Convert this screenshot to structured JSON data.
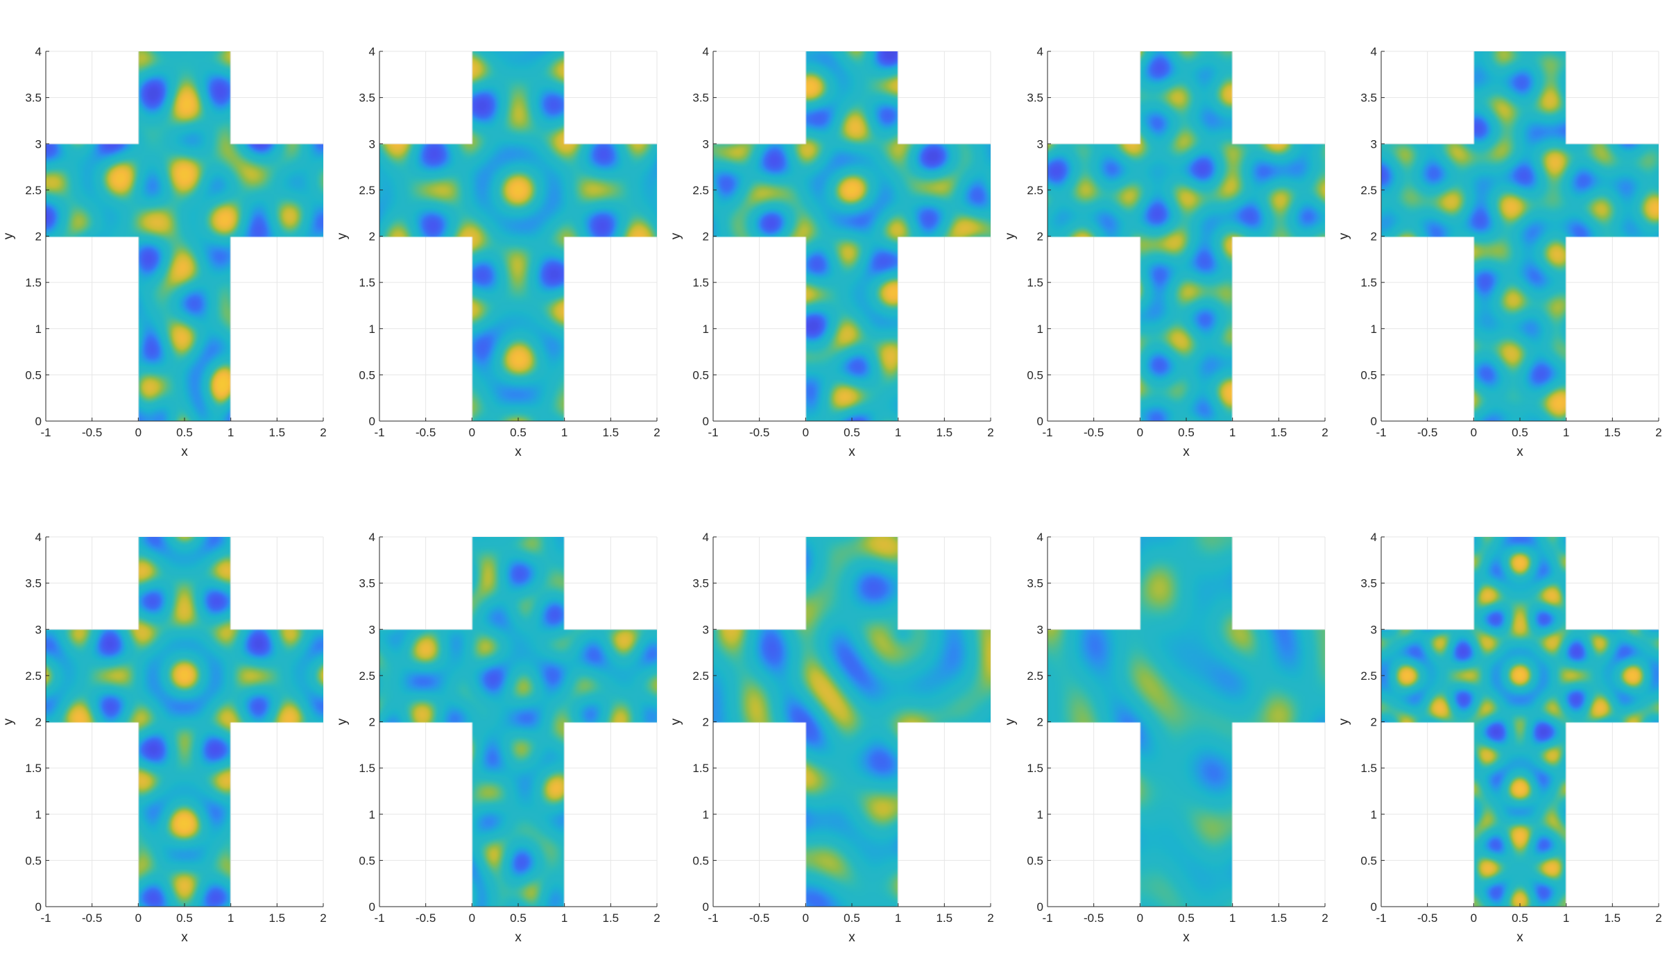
{
  "figure": {
    "colormap": [
      "#3e26a8",
      "#4754f0",
      "#2e87f7",
      "#0ab4d9",
      "#3fc69a",
      "#a6be30",
      "#f6ba3d",
      "#f9fb15"
    ],
    "background_color": "#23b6c6",
    "grid": true
  },
  "chart_data": [
    {
      "type": "heatmap",
      "panel": 1,
      "domain": "cross",
      "xlabel": "x",
      "ylabel": "y",
      "xlim": [
        -1,
        2
      ],
      "ylim": [
        0,
        4
      ],
      "xticks": [
        "-1",
        "-0.5",
        "0",
        "0.5",
        "1",
        "1.5",
        "2"
      ],
      "yticks": [
        "0",
        "0.5",
        "1",
        "1.5",
        "2",
        "2.5",
        "3",
        "3.5",
        "4"
      ],
      "pattern": {
        "mode": "mixed",
        "kx": 8.3,
        "ky": 7.1,
        "seed": 1.3,
        "amp": 1.0
      }
    },
    {
      "type": "heatmap",
      "panel": 2,
      "domain": "cross",
      "xlabel": "x",
      "ylabel": "y",
      "xlim": [
        -1,
        2
      ],
      "ylim": [
        0,
        4
      ],
      "xticks": [
        "-1",
        "-0.5",
        "0",
        "0.5",
        "1",
        "1.5",
        "2"
      ],
      "yticks": [
        "0",
        "0.5",
        "1",
        "1.5",
        "2",
        "2.5",
        "3",
        "3.5",
        "4"
      ],
      "pattern": {
        "mode": "symmetric",
        "kx": 7.0,
        "ky": 7.0,
        "seed": 0.0,
        "amp": 1.0
      }
    },
    {
      "type": "heatmap",
      "panel": 3,
      "domain": "cross",
      "xlabel": "x",
      "ylabel": "y",
      "xlim": [
        -1,
        2
      ],
      "ylim": [
        0,
        4
      ],
      "xticks": [
        "-1",
        "-0.5",
        "0",
        "0.5",
        "1",
        "1.5",
        "2"
      ],
      "yticks": [
        "0",
        "0.5",
        "1",
        "1.5",
        "2",
        "2.5",
        "3",
        "3.5",
        "4"
      ],
      "pattern": {
        "mode": "symmetric",
        "kx": 7.2,
        "ky": 8.4,
        "seed": 0.7,
        "amp": 1.0
      }
    },
    {
      "type": "heatmap",
      "panel": 4,
      "domain": "cross",
      "xlabel": "x",
      "ylabel": "y",
      "xlim": [
        -1,
        2
      ],
      "ylim": [
        0,
        4
      ],
      "xticks": [
        "-1",
        "-0.5",
        "0",
        "0.5",
        "1",
        "1.5",
        "2"
      ],
      "yticks": [
        "0",
        "0.5",
        "1",
        "1.5",
        "2",
        "2.5",
        "3",
        "3.5",
        "4"
      ],
      "pattern": {
        "mode": "diagonal",
        "kx": 7.6,
        "ky": 7.6,
        "seed": 2.1,
        "amp": 1.0
      }
    },
    {
      "type": "heatmap",
      "panel": 5,
      "domain": "cross",
      "xlabel": "x",
      "ylabel": "y",
      "xlim": [
        -1,
        2
      ],
      "ylim": [
        0,
        4
      ],
      "xticks": [
        "-1",
        "-0.5",
        "0",
        "0.5",
        "1",
        "1.5",
        "2"
      ],
      "yticks": [
        "0",
        "0.5",
        "1",
        "1.5",
        "2",
        "2.5",
        "3",
        "3.5",
        "4"
      ],
      "pattern": {
        "mode": "diagonal",
        "kx": 7.9,
        "ky": 7.3,
        "seed": 3.4,
        "amp": 1.0
      }
    },
    {
      "type": "heatmap",
      "panel": 6,
      "domain": "cross",
      "xlabel": "x",
      "ylabel": "y",
      "xlim": [
        -1,
        2
      ],
      "ylim": [
        0,
        4
      ],
      "xticks": [
        "-1",
        "-0.5",
        "0",
        "0.5",
        "1",
        "1.5",
        "2"
      ],
      "yticks": [
        "0",
        "0.5",
        "1",
        "1.5",
        "2",
        "2.5",
        "3",
        "3.5",
        "4"
      ],
      "pattern": {
        "mode": "symmetric",
        "kx": 8.0,
        "ky": 8.0,
        "seed": 1.9,
        "amp": 1.0
      }
    },
    {
      "type": "heatmap",
      "panel": 7,
      "domain": "cross",
      "xlabel": "x",
      "ylabel": "y",
      "xlim": [
        -1,
        2
      ],
      "ylim": [
        0,
        4
      ],
      "xticks": [
        "-1",
        "-0.5",
        "0",
        "0.5",
        "1",
        "1.5",
        "2"
      ],
      "yticks": [
        "0",
        "0.5",
        "1",
        "1.5",
        "2",
        "2.5",
        "3",
        "3.5",
        "4"
      ],
      "pattern": {
        "mode": "mixed",
        "kx": 8.8,
        "ky": 8.2,
        "seed": 4.2,
        "amp": 0.8
      }
    },
    {
      "type": "heatmap",
      "panel": 8,
      "domain": "cross",
      "xlabel": "x",
      "ylabel": "y",
      "xlim": [
        -1,
        2
      ],
      "ylim": [
        0,
        4
      ],
      "xticks": [
        "-1",
        "-0.5",
        "0",
        "0.5",
        "1",
        "1.5",
        "2"
      ],
      "yticks": [
        "0",
        "0.5",
        "1",
        "1.5",
        "2",
        "2.5",
        "3",
        "3.5",
        "4"
      ],
      "pattern": {
        "mode": "curved",
        "kx": 7.5,
        "ky": 7.5,
        "seed": 5.0,
        "amp": 0.75
      }
    },
    {
      "type": "heatmap",
      "panel": 9,
      "domain": "cross",
      "xlabel": "x",
      "ylabel": "y",
      "xlim": [
        -1,
        2
      ],
      "ylim": [
        0,
        4
      ],
      "xticks": [
        "-1",
        "-0.5",
        "0",
        "0.5",
        "1",
        "1.5",
        "2"
      ],
      "yticks": [
        "0",
        "0.5",
        "1",
        "1.5",
        "2",
        "2.5",
        "3",
        "3.5",
        "4"
      ],
      "pattern": {
        "mode": "curved",
        "kx": 6.2,
        "ky": 6.2,
        "seed": 6.3,
        "amp": 0.6
      }
    },
    {
      "type": "heatmap",
      "panel": 10,
      "domain": "cross",
      "xlabel": "x",
      "ylabel": "y",
      "xlim": [
        -1,
        2
      ],
      "ylim": [
        0,
        4
      ],
      "xticks": [
        "-1",
        "-0.5",
        "0",
        "0.5",
        "1",
        "1.5",
        "2"
      ],
      "yticks": [
        "0",
        "0.5",
        "1",
        "1.5",
        "2",
        "2.5",
        "3",
        "3.5",
        "4"
      ],
      "pattern": {
        "mode": "symmetric",
        "kx": 10.5,
        "ky": 10.5,
        "seed": 7.7,
        "amp": 1.0
      }
    }
  ]
}
